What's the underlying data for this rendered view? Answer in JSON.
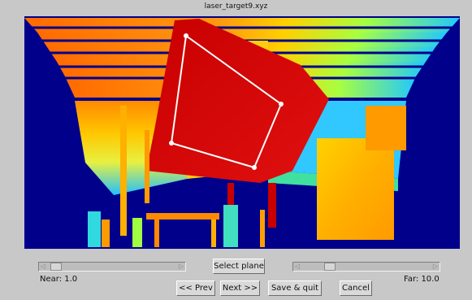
{
  "window": {
    "title": "laser_target9.xyz"
  },
  "viewport": {
    "selection_overlay": "polygon"
  },
  "near_slider": {
    "label": "Near: 1.0",
    "value": 1.0
  },
  "far_slider": {
    "label": "Far: 10.0",
    "value": 10.0
  },
  "buttons": {
    "select_plane": "Select plane",
    "prev": "<< Prev",
    "next": "Next >>",
    "save_quit": "Save & quit",
    "cancel": "Cancel"
  },
  "colors": {
    "background": "#00008b",
    "selection": "#ffffff",
    "plane": "#cc0000"
  }
}
